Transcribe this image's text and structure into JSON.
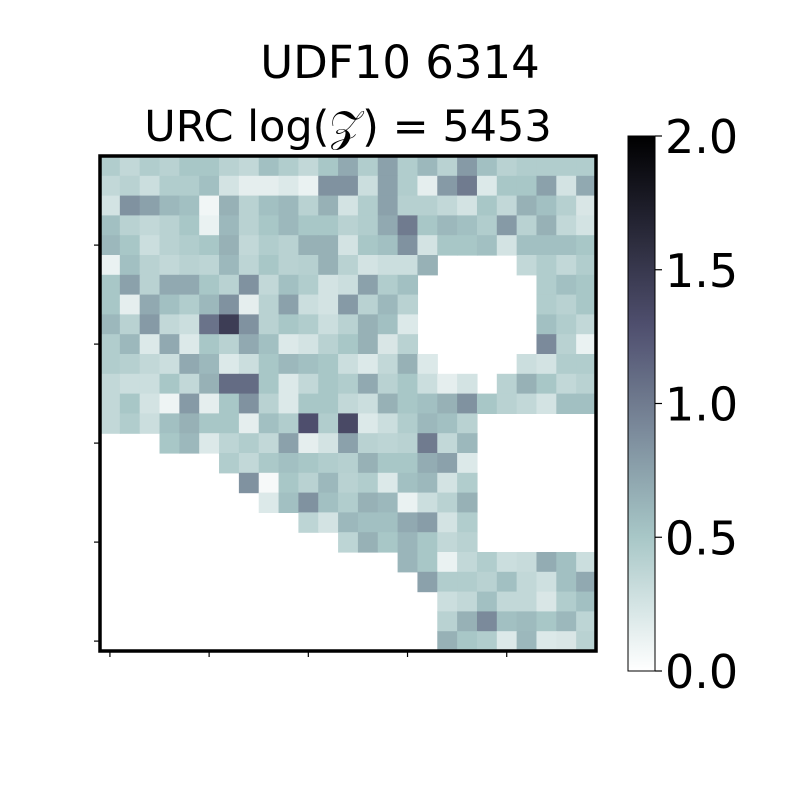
{
  "chart_data": {
    "type": "heatmap",
    "title": "UDF10 6314",
    "subtitle": "URC log(𝒵) = 5453",
    "colormap": "bone_r",
    "vmin": 0.0,
    "vmax": 2.0,
    "colorbar": {
      "ticks": [
        0.0,
        0.5,
        1.0,
        1.5,
        2.0
      ],
      "tick_labels": [
        "0.0",
        "0.5",
        "1.0",
        "1.5",
        "2.0"
      ]
    },
    "xtick_labels_visible": false,
    "ytick_labels_visible": false,
    "grid": false,
    "values": [
      [
        0.45,
        0.35,
        0.45,
        0.4,
        0.5,
        0.5,
        0.4,
        0.35,
        0.55,
        0.45,
        0.35,
        0.5,
        0.7,
        0.45,
        0.75,
        0.45,
        0.6,
        0.4,
        0.8,
        0.55,
        0.4,
        0.45,
        0.45,
        0.45,
        0.45
      ],
      [
        0.35,
        0.4,
        0.3,
        0.45,
        0.45,
        0.55,
        0.25,
        0.15,
        0.15,
        0.2,
        0.12,
        0.85,
        0.85,
        0.3,
        0.75,
        0.45,
        0.15,
        0.8,
        1.0,
        0.2,
        0.5,
        0.5,
        0.75,
        0.25,
        0.7
      ],
      [
        0.25,
        0.85,
        0.75,
        0.6,
        0.55,
        0.08,
        0.65,
        0.4,
        0.55,
        0.6,
        0.4,
        0.65,
        0.25,
        0.45,
        0.75,
        0.42,
        0.42,
        0.35,
        0.25,
        0.5,
        0.35,
        0.65,
        0.55,
        0.42,
        0.22
      ],
      [
        0.55,
        0.4,
        0.35,
        0.4,
        0.5,
        0.12,
        0.6,
        0.4,
        0.5,
        0.6,
        0.5,
        0.5,
        0.4,
        0.45,
        0.7,
        1.0,
        0.5,
        0.6,
        0.55,
        0.45,
        0.8,
        0.4,
        0.65,
        0.35,
        0.25
      ],
      [
        0.6,
        0.5,
        0.3,
        0.4,
        0.45,
        0.5,
        0.65,
        0.35,
        0.45,
        0.4,
        0.65,
        0.65,
        0.25,
        0.5,
        0.55,
        0.85,
        0.25,
        0.5,
        0.5,
        0.55,
        0.25,
        0.55,
        0.55,
        0.55,
        0.5
      ],
      [
        0.12,
        0.55,
        0.4,
        0.35,
        0.4,
        0.38,
        0.6,
        0.38,
        0.5,
        0.4,
        0.42,
        0.65,
        0.4,
        0.25,
        0.3,
        0.3,
        0.65,
        null,
        null,
        null,
        null,
        0.35,
        0.45,
        0.35,
        0.45
      ],
      [
        0.5,
        0.75,
        0.4,
        0.7,
        0.7,
        0.5,
        0.4,
        0.85,
        0.35,
        0.55,
        0.45,
        0.25,
        0.3,
        0.75,
        0.45,
        0.55,
        null,
        null,
        null,
        null,
        null,
        null,
        0.45,
        0.55,
        0.5
      ],
      [
        0.5,
        0.15,
        0.7,
        0.55,
        0.45,
        0.6,
        0.85,
        0.15,
        0.4,
        0.75,
        0.3,
        0.25,
        0.8,
        0.4,
        0.6,
        0.4,
        null,
        null,
        null,
        null,
        null,
        null,
        0.45,
        0.4,
        0.5
      ],
      [
        0.6,
        0.4,
        0.8,
        0.35,
        0.3,
        1.05,
        1.45,
        0.85,
        0.4,
        0.5,
        0.45,
        0.3,
        0.4,
        0.65,
        0.55,
        0.2,
        null,
        null,
        null,
        null,
        null,
        null,
        0.55,
        0.45,
        0.35
      ],
      [
        0.45,
        0.6,
        0.2,
        0.7,
        0.2,
        0.5,
        0.4,
        0.7,
        0.55,
        0.2,
        0.25,
        0.4,
        0.5,
        0.65,
        0.22,
        0.4,
        null,
        null,
        null,
        null,
        null,
        null,
        0.9,
        0.4,
        0.12
      ],
      [
        0.45,
        0.42,
        0.35,
        0.3,
        0.7,
        0.6,
        0.2,
        0.3,
        0.5,
        0.6,
        0.55,
        0.5,
        0.3,
        0.2,
        0.35,
        0.65,
        0.2,
        null,
        null,
        null,
        null,
        0.3,
        0.25,
        0.45,
        0.45
      ],
      [
        0.35,
        0.3,
        0.3,
        0.5,
        0.35,
        0.65,
        1.1,
        1.1,
        0.5,
        0.2,
        0.35,
        0.5,
        0.45,
        0.7,
        0.4,
        0.5,
        0.3,
        0.15,
        0.25,
        null,
        0.4,
        0.65,
        0.5,
        0.35,
        0.4
      ],
      [
        0.35,
        0.5,
        0.25,
        0.1,
        0.8,
        0.15,
        0.5,
        0.85,
        0.4,
        0.2,
        0.5,
        0.5,
        0.35,
        0.3,
        0.65,
        0.5,
        0.55,
        0.65,
        0.85,
        0.5,
        0.4,
        0.35,
        0.25,
        0.55,
        0.55
      ],
      [
        0.35,
        0.45,
        0.3,
        0.55,
        0.65,
        0.5,
        0.5,
        0.15,
        0.55,
        0.45,
        1.3,
        0.45,
        1.35,
        0.2,
        0.3,
        0.45,
        0.6,
        0.55,
        0.4,
        null,
        null,
        null,
        null,
        null,
        null
      ],
      [
        null,
        null,
        null,
        0.5,
        0.6,
        0.2,
        0.38,
        0.45,
        0.35,
        0.75,
        0.15,
        0.25,
        0.75,
        0.4,
        0.38,
        0.4,
        1.0,
        0.35,
        0.6,
        null,
        null,
        null,
        null,
        null,
        null
      ],
      [
        null,
        null,
        null,
        null,
        null,
        null,
        0.45,
        0.35,
        0.48,
        0.55,
        0.5,
        0.45,
        0.42,
        0.65,
        0.5,
        0.5,
        0.68,
        0.75,
        0.2,
        null,
        null,
        null,
        null,
        null,
        null
      ],
      [
        null,
        null,
        null,
        null,
        null,
        null,
        null,
        0.85,
        0.05,
        0.5,
        0.4,
        0.6,
        0.4,
        0.45,
        0.2,
        0.55,
        0.6,
        0.25,
        0.45,
        null,
        null,
        null,
        null,
        null,
        null
      ],
      [
        null,
        null,
        null,
        null,
        null,
        null,
        null,
        null,
        0.2,
        0.55,
        0.85,
        0.55,
        0.45,
        0.65,
        0.6,
        0.12,
        0.3,
        0.4,
        0.65,
        null,
        null,
        null,
        null,
        null,
        null
      ],
      [
        null,
        null,
        null,
        null,
        null,
        null,
        null,
        null,
        null,
        null,
        0.38,
        0.25,
        0.6,
        0.55,
        0.55,
        0.7,
        0.78,
        0.25,
        0.45,
        null,
        null,
        null,
        null,
        null,
        null
      ],
      [
        null,
        null,
        null,
        null,
        null,
        null,
        null,
        null,
        null,
        null,
        null,
        null,
        0.38,
        0.65,
        0.5,
        0.62,
        0.5,
        0.35,
        0.4,
        null,
        null,
        null,
        null,
        null,
        null
      ],
      [
        null,
        null,
        null,
        null,
        null,
        null,
        null,
        null,
        null,
        null,
        null,
        null,
        null,
        null,
        null,
        0.62,
        0.5,
        0.12,
        0.35,
        0.45,
        0.3,
        0.32,
        0.68,
        0.55,
        0.3
      ],
      [
        null,
        null,
        null,
        null,
        null,
        null,
        null,
        null,
        null,
        null,
        null,
        null,
        null,
        null,
        null,
        null,
        0.75,
        0.45,
        0.45,
        0.4,
        0.55,
        0.35,
        0.28,
        0.55,
        0.7
      ],
      [
        null,
        null,
        null,
        null,
        null,
        null,
        null,
        null,
        null,
        null,
        null,
        null,
        null,
        null,
        null,
        null,
        null,
        0.3,
        0.35,
        0.55,
        0.35,
        0.35,
        0.22,
        0.45,
        0.55
      ],
      [
        null,
        null,
        null,
        null,
        null,
        null,
        null,
        null,
        null,
        null,
        null,
        null,
        null,
        null,
        null,
        null,
        null,
        0.4,
        0.65,
        0.9,
        0.55,
        0.58,
        0.5,
        0.6,
        0.38
      ],
      [
        null,
        null,
        null,
        null,
        null,
        null,
        null,
        null,
        null,
        null,
        null,
        null,
        null,
        null,
        null,
        null,
        null,
        0.65,
        0.5,
        0.45,
        0.2,
        0.6,
        0.2,
        0.22,
        0.4
      ]
    ]
  }
}
